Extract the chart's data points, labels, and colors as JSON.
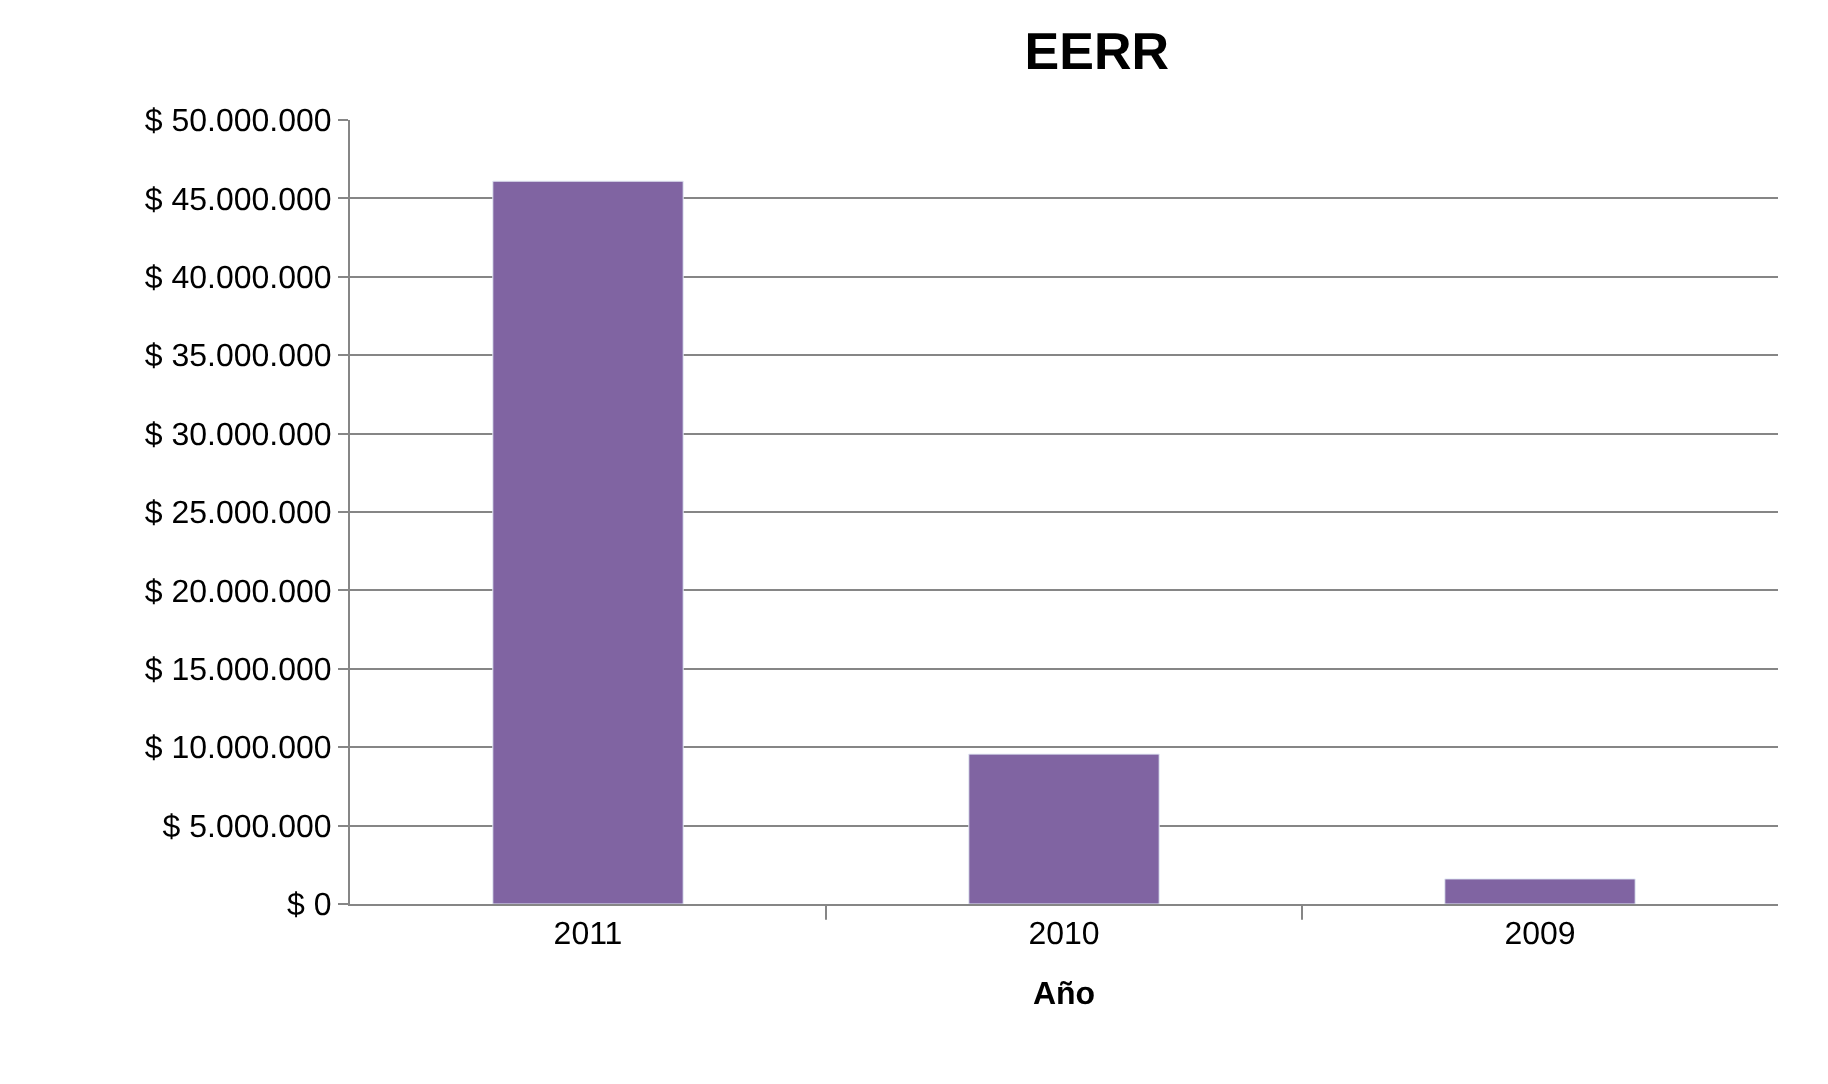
{
  "chart_data": {
    "type": "bar",
    "title": "EERR",
    "xlabel": "Año",
    "categories": [
      "2011",
      "2010",
      "2009"
    ],
    "values": [
      46100000,
      9560000,
      1600000
    ],
    "color": "#8064a2",
    "ylim": [
      0,
      50000000
    ],
    "yticks": [
      {
        "value": 0,
        "label": "$ 0"
      },
      {
        "value": 5000000,
        "label": "$ 5.000.000"
      },
      {
        "value": 10000000,
        "label": "$ 10.000.000"
      },
      {
        "value": 15000000,
        "label": "$ 15.000.000"
      },
      {
        "value": 20000000,
        "label": "$ 20.000.000"
      },
      {
        "value": 25000000,
        "label": "$ 25.000.000"
      },
      {
        "value": 30000000,
        "label": "$ 30.000.000"
      },
      {
        "value": 35000000,
        "label": "$ 35.000.000"
      },
      {
        "value": 40000000,
        "label": "$ 40.000.000"
      },
      {
        "value": 45000000,
        "label": "$ 45.000.000"
      },
      {
        "value": 50000000,
        "label": "$ 50.000.000"
      }
    ],
    "grid": "y",
    "legend": false
  }
}
